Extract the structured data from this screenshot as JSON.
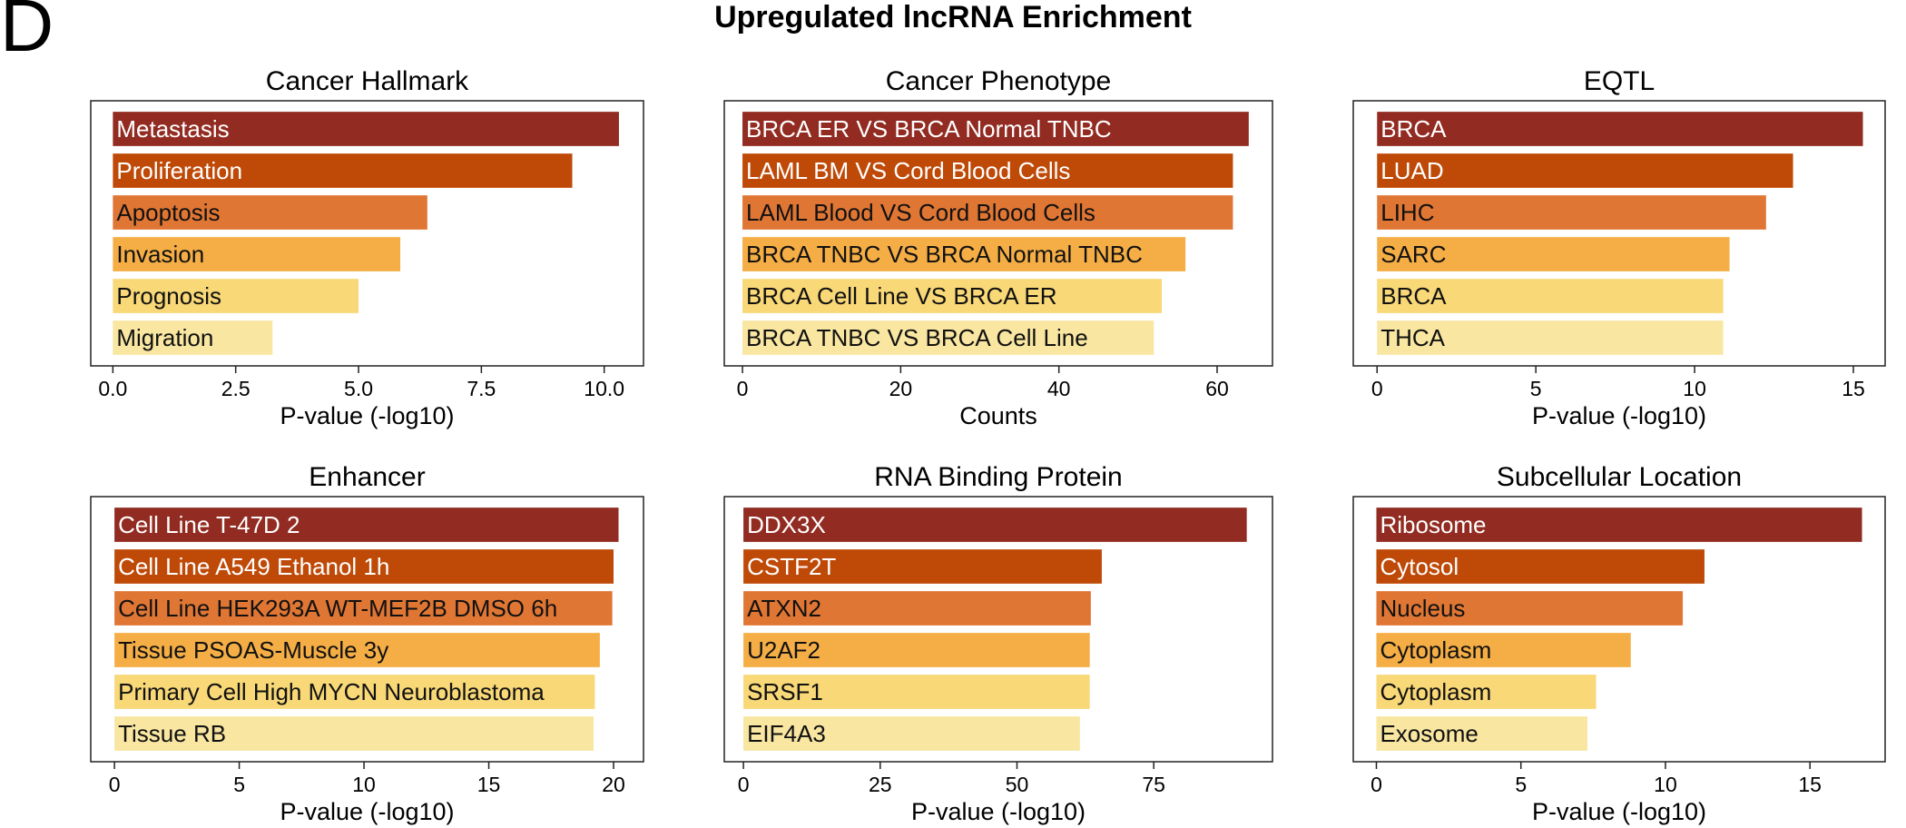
{
  "panel_letter": "D",
  "figure_title": "Upregulated lncRNA Enrichment",
  "bar_colors": [
    "#922b21",
    "#bf4a08",
    "#e07634",
    "#f5ae45",
    "#f8d877",
    "#f8e6a1"
  ],
  "bar_text_colors": [
    "#ffffff",
    "#ffffff",
    "#111111",
    "#111111",
    "#111111",
    "#111111"
  ],
  "chart_data": [
    {
      "type": "bar",
      "orientation": "horizontal",
      "title": "Cancer Hallmark",
      "xlabel": "P-value (-log10)",
      "categories": [
        "Metastasis",
        "Proliferation",
        "Apoptosis",
        "Invasion",
        "Prognosis",
        "Migration"
      ],
      "values": [
        10.3,
        9.35,
        6.4,
        5.85,
        5.0,
        3.25
      ],
      "xlim": [
        -0.45,
        10.8
      ],
      "xticks": [
        0.0,
        2.5,
        5.0,
        7.5,
        10.0
      ],
      "xtick_labels": [
        "0.0",
        "2.5",
        "5.0",
        "7.5",
        "10.0"
      ]
    },
    {
      "type": "bar",
      "orientation": "horizontal",
      "title": "Cancer Phenotype",
      "xlabel": "Counts",
      "categories": [
        "BRCA ER VS BRCA Normal TNBC",
        "LAML BM VS Cord Blood Cells",
        "LAML Blood VS Cord Blood Cells",
        "BRCA TNBC VS BRCA Normal TNBC",
        "BRCA Cell Line VS BRCA ER",
        "BRCA TNBC VS BRCA Cell Line"
      ],
      "values": [
        64,
        62,
        62,
        56,
        53,
        52
      ],
      "xlim": [
        -2.3,
        67
      ],
      "xticks": [
        0,
        20,
        40,
        60
      ],
      "xtick_labels": [
        "0",
        "20",
        "40",
        "60"
      ]
    },
    {
      "type": "bar",
      "orientation": "horizontal",
      "title": "EQTL",
      "xlabel": "P-value (-log10)",
      "categories": [
        "BRCA",
        "LUAD",
        "LIHC",
        "SARC",
        "BRCA",
        "THCA"
      ],
      "values": [
        15.3,
        13.1,
        12.25,
        11.1,
        10.9,
        10.9
      ],
      "xlim": [
        -0.75,
        16.0
      ],
      "xticks": [
        0,
        5,
        10,
        15
      ],
      "xtick_labels": [
        "0",
        "5",
        "10",
        "15"
      ]
    },
    {
      "type": "bar",
      "orientation": "horizontal",
      "title": "Enhancer",
      "xlabel": "P-value (-log10)",
      "categories": [
        "Cell Line T-47D 2",
        "Cell Line A549 Ethanol 1h",
        "Cell Line HEK293A WT-MEF2B DMSO 6h",
        "Tissue PSOAS-Muscle 3y",
        "Primary Cell High MYCN Neuroblastoma",
        "Tissue RB"
      ],
      "values": [
        20.2,
        20.0,
        19.95,
        19.45,
        19.25,
        19.2
      ],
      "xlim": [
        -0.95,
        21.2
      ],
      "xticks": [
        0,
        5,
        10,
        15,
        20
      ],
      "xtick_labels": [
        "0",
        "5",
        "10",
        "15",
        "20"
      ]
    },
    {
      "type": "bar",
      "orientation": "horizontal",
      "title": "RNA Binding Protein",
      "xlabel": "P-value (-log10)",
      "categories": [
        "DDX3X",
        "CSTF2T",
        "ATXN2",
        "U2AF2",
        "SRSF1",
        "EIF4A3"
      ],
      "values": [
        92,
        65.5,
        63.5,
        63.3,
        63.3,
        61.5
      ],
      "xlim": [
        -3.5,
        96.7
      ],
      "xticks": [
        0,
        25,
        50,
        75
      ],
      "xtick_labels": [
        "0",
        "25",
        "50",
        "75"
      ]
    },
    {
      "type": "bar",
      "orientation": "horizontal",
      "title": "Subcellular Location",
      "xlabel": "P-value (-log10)",
      "categories": [
        "Ribosome",
        "Cytosol",
        "Nucleus",
        "Cytoplasm",
        "Cytoplasm",
        "Exosome"
      ],
      "values": [
        16.8,
        11.35,
        10.6,
        8.8,
        7.6,
        7.3
      ],
      "xlim": [
        -0.8,
        17.6
      ],
      "xticks": [
        0,
        5,
        10,
        15
      ],
      "xtick_labels": [
        "0",
        "5",
        "10",
        "15"
      ]
    }
  ]
}
